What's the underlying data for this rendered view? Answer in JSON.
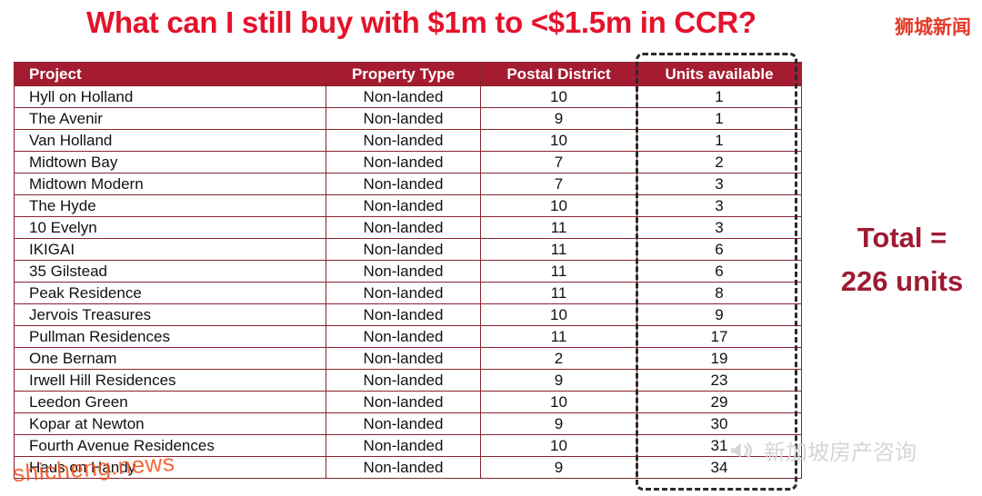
{
  "title": "What can I still buy with $1m to <$1.5m in CCR?",
  "brand": "狮城新闻",
  "chart_data": {
    "type": "table",
    "title": "What can I still buy with $1m to <$1.5m in CCR?",
    "columns": [
      "Project",
      "Property Type",
      "Postal District",
      "Units available"
    ],
    "rows": [
      [
        "Hyll on Holland",
        "Non-landed",
        10,
        1
      ],
      [
        "The Avenir",
        "Non-landed",
        9,
        1
      ],
      [
        "Van Holland",
        "Non-landed",
        10,
        1
      ],
      [
        "Midtown Bay",
        "Non-landed",
        7,
        2
      ],
      [
        "Midtown Modern",
        "Non-landed",
        7,
        3
      ],
      [
        "The Hyde",
        "Non-landed",
        10,
        3
      ],
      [
        "10 Evelyn",
        "Non-landed",
        11,
        3
      ],
      [
        "IKIGAI",
        "Non-landed",
        11,
        6
      ],
      [
        "35 Gilstead",
        "Non-landed",
        11,
        6
      ],
      [
        "Peak Residence",
        "Non-landed",
        11,
        8
      ],
      [
        "Jervois Treasures",
        "Non-landed",
        10,
        9
      ],
      [
        "Pullman Residences",
        "Non-landed",
        11,
        17
      ],
      [
        "One Bernam",
        "Non-landed",
        2,
        19
      ],
      [
        "Irwell Hill Residences",
        "Non-landed",
        9,
        23
      ],
      [
        "Leedon Green",
        "Non-landed",
        10,
        29
      ],
      [
        "Kopar at Newton",
        "Non-landed",
        9,
        30
      ],
      [
        "Fourth Avenue Residences",
        "Non-landed",
        10,
        31
      ],
      [
        "Haus on Handy",
        "Non-landed",
        9,
        34
      ]
    ],
    "total_units": 226,
    "highlighted_column": "Units available"
  },
  "total_label": {
    "line1": "Total =",
    "line2": "226 units"
  },
  "watermarks": {
    "site": "shicheng.news",
    "wechat": "新加坡房产咨询"
  },
  "colors": {
    "title_red": "#e4122b",
    "header_bg": "#a51c30",
    "table_border": "#8a2230",
    "total_maroon": "#9e1b32",
    "watermark_orange": "#f05523",
    "watermark_gray": "#d6d6d6"
  }
}
